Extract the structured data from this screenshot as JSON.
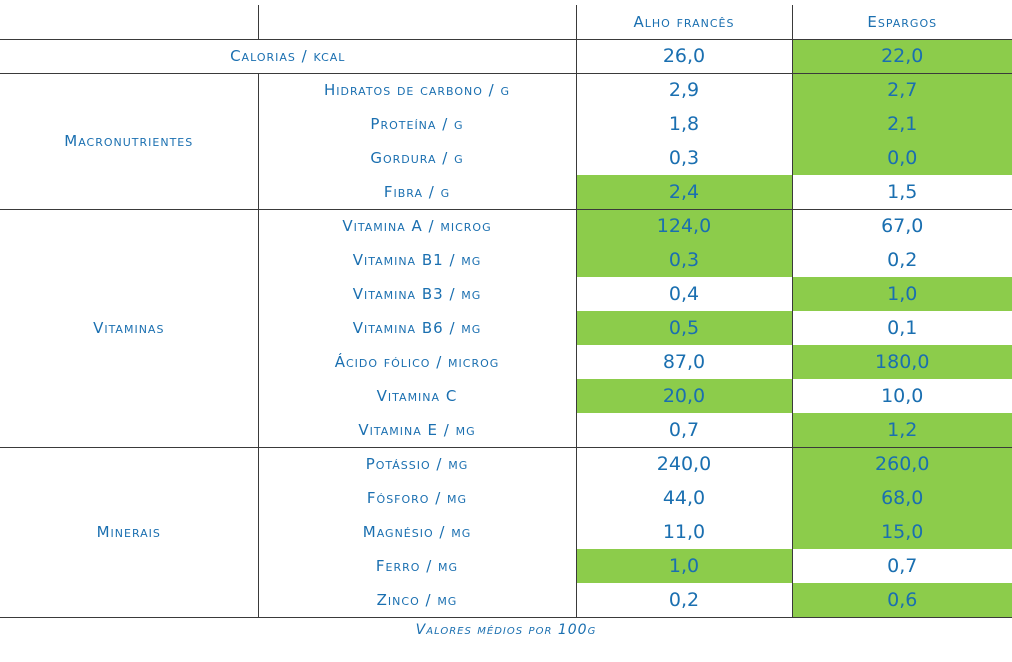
{
  "header": {
    "col1": "Alho francês",
    "col2": "Espargos"
  },
  "colors": {
    "text": "#1a6fb0",
    "highlight": "#8ccc4b",
    "border": "#3a3a3a"
  },
  "calories": {
    "label": "Calorias / kcal",
    "v1": "26,0",
    "v2": "22,0",
    "hl": "v2"
  },
  "groups": [
    {
      "name": "Macronutrientes",
      "rows": [
        {
          "label": "Hidratos de carbono / g",
          "v1": "2,9",
          "v2": "2,7",
          "hl": "v2"
        },
        {
          "label": "Proteína / g",
          "v1": "1,8",
          "v2": "2,1",
          "hl": "v2"
        },
        {
          "label": "Gordura / g",
          "v1": "0,3",
          "v2": "0,0",
          "hl": "v2"
        },
        {
          "label": "Fibra / g",
          "v1": "2,4",
          "v2": "1,5",
          "hl": "v1"
        }
      ]
    },
    {
      "name": "Vitaminas",
      "rows": [
        {
          "label": "Vitamina A / microg",
          "v1": "124,0",
          "v2": "67,0",
          "hl": "v1"
        },
        {
          "label": "Vitamina B1 / mg",
          "v1": "0,3",
          "v2": "0,2",
          "hl": "v1"
        },
        {
          "label": "Vitamina B3 / mg",
          "v1": "0,4",
          "v2": "1,0",
          "hl": "v2"
        },
        {
          "label": "Vitamina B6 / mg",
          "v1": "0,5",
          "v2": "0,1",
          "hl": "v1"
        },
        {
          "label": "Ácido fólico / microg",
          "v1": "87,0",
          "v2": "180,0",
          "hl": "v2"
        },
        {
          "label": "Vitamina C",
          "v1": "20,0",
          "v2": "10,0",
          "hl": "v1"
        },
        {
          "label": "Vitamina E / mg",
          "v1": "0,7",
          "v2": "1,2",
          "hl": "v2"
        }
      ]
    },
    {
      "name": "Minerais",
      "rows": [
        {
          "label": "Potássio / mg",
          "v1": "240,0",
          "v2": "260,0",
          "hl": "v2"
        },
        {
          "label": "Fósforo / mg",
          "v1": "44,0",
          "v2": "68,0",
          "hl": "v2"
        },
        {
          "label": "Magnésio / mg",
          "v1": "11,0",
          "v2": "15,0",
          "hl": "v2"
        },
        {
          "label": "Ferro / mg",
          "v1": "1,0",
          "v2": "0,7",
          "hl": "v1"
        },
        {
          "label": "Zinco / mg",
          "v1": "0,2",
          "v2": "0,6",
          "hl": "v2"
        }
      ]
    }
  ],
  "caption": "Valores médios por 100g"
}
